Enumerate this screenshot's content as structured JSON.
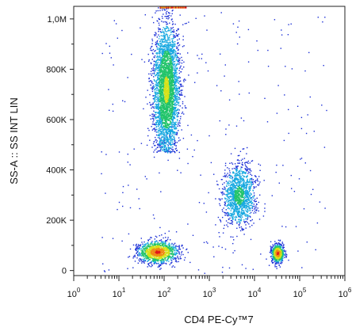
{
  "chart_data": {
    "type": "scatter",
    "subtype": "flow-cytometry-density-dot-plot",
    "xlabel": "CD4 PE-Cy™7",
    "ylabel": "SS-A :: SS INT LIN",
    "x_scale": "log",
    "x_range": [
      1,
      1000000
    ],
    "x_ticks": [
      {
        "value": 1,
        "base": "10",
        "exp": "0"
      },
      {
        "value": 10,
        "base": "10",
        "exp": "1"
      },
      {
        "value": 100,
        "base": "10",
        "exp": "2"
      },
      {
        "value": 1000,
        "base": "10",
        "exp": "3"
      },
      {
        "value": 10000,
        "base": "10",
        "exp": "4"
      },
      {
        "value": 100000,
        "base": "10",
        "exp": "5"
      },
      {
        "value": 1000000,
        "base": "10",
        "exp": "6"
      }
    ],
    "y_scale": "linear",
    "y_range": [
      -20000,
      1050000
    ],
    "y_ticks": [
      {
        "value": 0,
        "label": "0"
      },
      {
        "value": 200000,
        "label": "200K"
      },
      {
        "value": 400000,
        "label": "400K"
      },
      {
        "value": 600000,
        "label": "600K"
      },
      {
        "value": 800000,
        "label": "800K"
      },
      {
        "value": 1000000,
        "label": "1,0M"
      }
    ],
    "grid": false,
    "density_colors": [
      "#1b2fd6",
      "#16a8e0",
      "#22c46a",
      "#d6e21a",
      "#f08a14",
      "#e0181a"
    ],
    "populations": [
      {
        "x_center": 110,
        "x_spread_decades": 0.14,
        "y_center": 720000,
        "y_spread": 130000,
        "y_min": 470000,
        "events": 3400,
        "peak_color": "#d6e21a"
      },
      {
        "x_center": 4500,
        "x_spread_decades": 0.18,
        "y_center": 300000,
        "y_spread": 60000,
        "events": 1300,
        "peak_color": "#22c46a"
      },
      {
        "x_center": 70,
        "x_spread_decades": 0.22,
        "y_center": 75000,
        "y_spread": 22000,
        "events": 1200,
        "peak_color": "#e0181a"
      },
      {
        "x_center": 32000,
        "x_spread_decades": 0.07,
        "y_center": 70000,
        "y_spread": 18000,
        "events": 650,
        "peak_color": "#e0181a"
      }
    ],
    "saturation_band": {
      "x_range": [
        80,
        300
      ],
      "y": 1050000
    },
    "background_events": 260
  }
}
